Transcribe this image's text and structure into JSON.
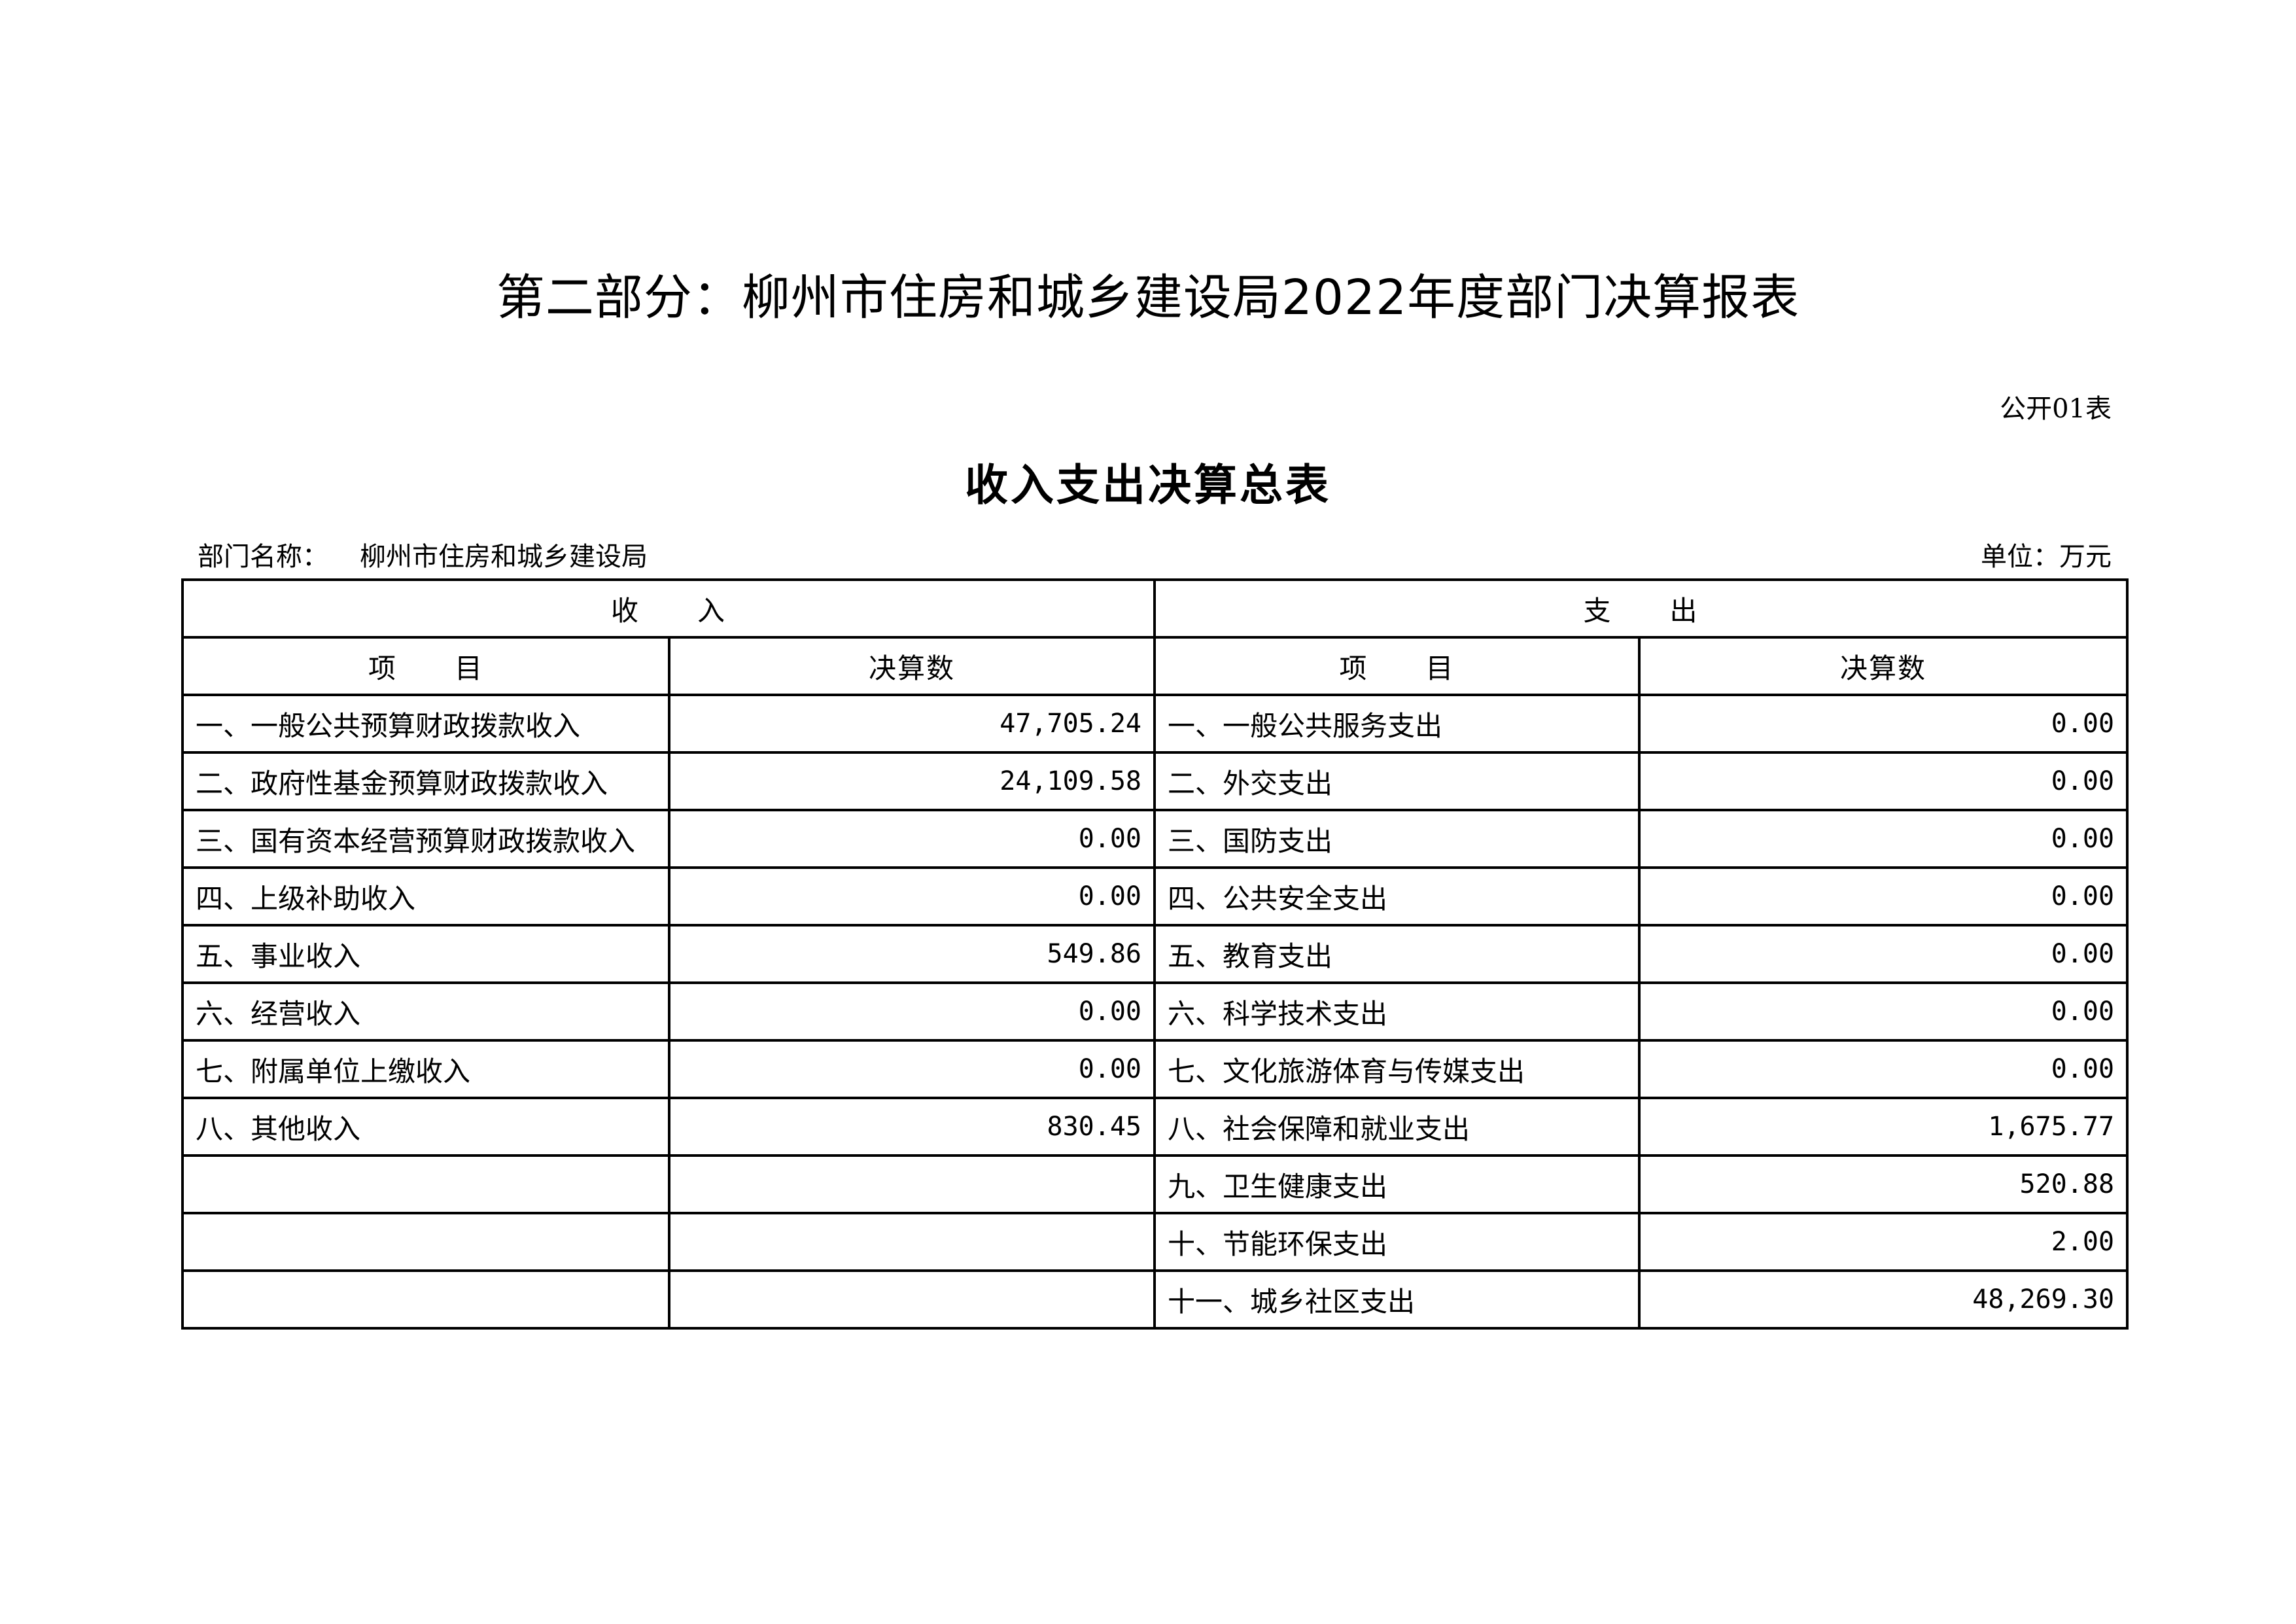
{
  "main_title": "第二部分：柳州市住房和城乡建设局2022年度部门决算报表",
  "form_code": "公开01表",
  "sub_title": "收入支出决算总表",
  "department_label": "部门名称：",
  "department_name": "柳州市住房和城乡建设局",
  "unit": "单位：万元",
  "table": {
    "income_header": "收　　入",
    "expense_header": "支　　出",
    "item_header": "项　　目",
    "amount_header": "决算数",
    "income_rows": [
      {
        "item": "一、一般公共预算财政拨款收入",
        "amount": "47,705.24"
      },
      {
        "item": "二、政府性基金预算财政拨款收入",
        "amount": "24,109.58"
      },
      {
        "item": "三、国有资本经营预算财政拨款收入",
        "amount": "0.00"
      },
      {
        "item": "四、上级补助收入",
        "amount": "0.00"
      },
      {
        "item": "五、事业收入",
        "amount": "549.86"
      },
      {
        "item": "六、经营收入",
        "amount": "0.00"
      },
      {
        "item": "七、附属单位上缴收入",
        "amount": "0.00"
      },
      {
        "item": "八、其他收入",
        "amount": "830.45"
      },
      {
        "item": "",
        "amount": ""
      },
      {
        "item": "",
        "amount": ""
      },
      {
        "item": "",
        "amount": ""
      }
    ],
    "expense_rows": [
      {
        "item": "一、一般公共服务支出",
        "amount": "0.00"
      },
      {
        "item": "二、外交支出",
        "amount": "0.00"
      },
      {
        "item": "三、国防支出",
        "amount": "0.00"
      },
      {
        "item": "四、公共安全支出",
        "amount": "0.00"
      },
      {
        "item": "五、教育支出",
        "amount": "0.00"
      },
      {
        "item": "六、科学技术支出",
        "amount": "0.00"
      },
      {
        "item": "七、文化旅游体育与传媒支出",
        "amount": "0.00"
      },
      {
        "item": "八、社会保障和就业支出",
        "amount": "1,675.77"
      },
      {
        "item": "九、卫生健康支出",
        "amount": "520.88"
      },
      {
        "item": "十、节能环保支出",
        "amount": "2.00"
      },
      {
        "item": "十一、城乡社区支出",
        "amount": "48,269.30"
      }
    ]
  }
}
